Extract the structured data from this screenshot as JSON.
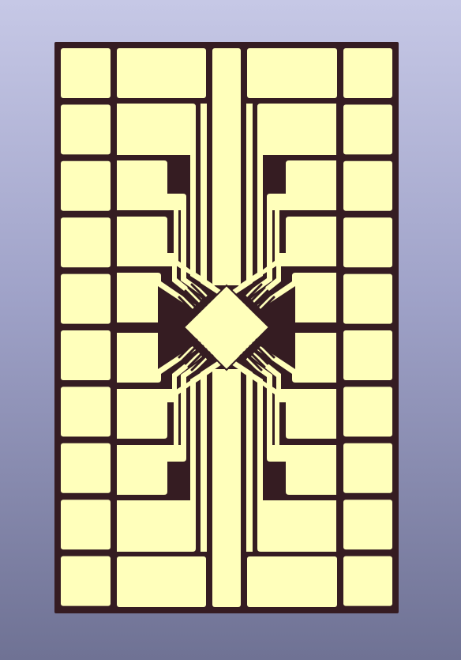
{
  "colors": {
    "board": "#351c22",
    "pad": "#ffffbb",
    "background_top": "#c6c8e6",
    "background_bottom": "#6f7294"
  },
  "board": {
    "grid_rows": 10,
    "outer_columns": 2,
    "central_chip": "die-pad",
    "fanout_traces_per_quadrant": 6
  }
}
